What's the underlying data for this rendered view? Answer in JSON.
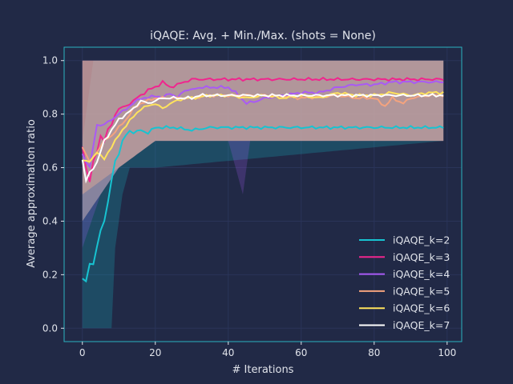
{
  "colors": {
    "background": "#212946",
    "axes_edge": "#2bb3c0",
    "grid": "#2a3459",
    "text": "#e0e3ea",
    "legend_text": "#e0e3ea"
  },
  "chart_data": {
    "type": "line",
    "title": "iQAQE: Avg. + Min./Max. (shots = None)",
    "xlabel": "# Iterations",
    "ylabel": "Average approximation ratio",
    "xlim": [
      -5,
      104
    ],
    "ylim": [
      -0.05,
      1.05
    ],
    "xticks": [
      0,
      20,
      40,
      60,
      80,
      100
    ],
    "yticks": [
      0.0,
      0.2,
      0.4,
      0.6,
      0.8,
      1.0
    ],
    "xtick_labels": [
      "0",
      "20",
      "40",
      "60",
      "80",
      "100"
    ],
    "ytick_labels": [
      "0.0",
      "0.2",
      "0.4",
      "0.6",
      "0.8",
      "1.0"
    ],
    "grid": true,
    "legend_position": "lower-right",
    "series_style": "line with shaded min/max band",
    "series": [
      {
        "name": "iQAQE_k=2",
        "color": "#17c3d1",
        "avg": [
          [
            0,
            0.18
          ],
          [
            1,
            0.18
          ],
          [
            2,
            0.24
          ],
          [
            3,
            0.24
          ],
          [
            4,
            0.3
          ],
          [
            5,
            0.37
          ],
          [
            6,
            0.4
          ],
          [
            7,
            0.47
          ],
          [
            8,
            0.55
          ],
          [
            9,
            0.63
          ],
          [
            10,
            0.65
          ],
          [
            11,
            0.7
          ],
          [
            12,
            0.72
          ],
          [
            13,
            0.74
          ],
          [
            14,
            0.73
          ],
          [
            16,
            0.74
          ],
          [
            18,
            0.73
          ],
          [
            20,
            0.75
          ],
          [
            25,
            0.75
          ],
          [
            30,
            0.74
          ],
          [
            35,
            0.75
          ],
          [
            40,
            0.75
          ],
          [
            50,
            0.75
          ],
          [
            60,
            0.75
          ],
          [
            70,
            0.75
          ],
          [
            80,
            0.75
          ],
          [
            90,
            0.75
          ],
          [
            99,
            0.75
          ]
        ],
        "min": [
          [
            0,
            0.0
          ],
          [
            8,
            0.0
          ],
          [
            9,
            0.3
          ],
          [
            11,
            0.5
          ],
          [
            13,
            0.6
          ],
          [
            16,
            0.6
          ],
          [
            20,
            0.6
          ],
          [
            99,
            0.7
          ]
        ],
        "max": [
          [
            0,
            0.7
          ],
          [
            3,
            1.0
          ],
          [
            99,
            1.0
          ]
        ]
      },
      {
        "name": "iQAQE_k=3",
        "color": "#f0258e",
        "avg": [
          [
            0,
            0.68
          ],
          [
            1,
            0.6
          ],
          [
            2,
            0.55
          ],
          [
            3,
            0.62
          ],
          [
            4,
            0.66
          ],
          [
            5,
            0.72
          ],
          [
            6,
            0.7
          ],
          [
            7,
            0.74
          ],
          [
            8,
            0.76
          ],
          [
            9,
            0.8
          ],
          [
            10,
            0.82
          ],
          [
            12,
            0.83
          ],
          [
            14,
            0.85
          ],
          [
            16,
            0.87
          ],
          [
            18,
            0.89
          ],
          [
            20,
            0.9
          ],
          [
            22,
            0.92
          ],
          [
            24,
            0.9
          ],
          [
            26,
            0.91
          ],
          [
            28,
            0.92
          ],
          [
            30,
            0.93
          ],
          [
            40,
            0.93
          ],
          [
            50,
            0.93
          ],
          [
            60,
            0.93
          ],
          [
            70,
            0.93
          ],
          [
            80,
            0.93
          ],
          [
            90,
            0.93
          ],
          [
            99,
            0.93
          ]
        ],
        "min": [
          [
            0,
            0.5
          ],
          [
            10,
            0.6
          ],
          [
            20,
            0.7
          ],
          [
            99,
            0.7
          ]
        ],
        "max": [
          [
            0,
            1.0
          ],
          [
            99,
            1.0
          ]
        ]
      },
      {
        "name": "iQAQE_k=4",
        "color": "#a95af5",
        "avg": [
          [
            0,
            0.65
          ],
          [
            2,
            0.6
          ],
          [
            4,
            0.76
          ],
          [
            6,
            0.76
          ],
          [
            8,
            0.78
          ],
          [
            10,
            0.8
          ],
          [
            12,
            0.82
          ],
          [
            14,
            0.84
          ],
          [
            16,
            0.86
          ],
          [
            18,
            0.86
          ],
          [
            20,
            0.87
          ],
          [
            22,
            0.86
          ],
          [
            24,
            0.88
          ],
          [
            26,
            0.86
          ],
          [
            28,
            0.89
          ],
          [
            30,
            0.89
          ],
          [
            32,
            0.9
          ],
          [
            35,
            0.9
          ],
          [
            40,
            0.9
          ],
          [
            42,
            0.88
          ],
          [
            45,
            0.84
          ],
          [
            48,
            0.85
          ],
          [
            50,
            0.86
          ],
          [
            55,
            0.87
          ],
          [
            60,
            0.88
          ],
          [
            65,
            0.88
          ],
          [
            70,
            0.9
          ],
          [
            75,
            0.91
          ],
          [
            80,
            0.91
          ],
          [
            85,
            0.92
          ],
          [
            90,
            0.92
          ],
          [
            95,
            0.92
          ],
          [
            99,
            0.92
          ]
        ],
        "min": [
          [
            0,
            0.3
          ],
          [
            5,
            0.5
          ],
          [
            10,
            0.6
          ],
          [
            20,
            0.7
          ],
          [
            40,
            0.7
          ],
          [
            44,
            0.5
          ],
          [
            46,
            0.7
          ],
          [
            99,
            0.7
          ]
        ],
        "max": [
          [
            0,
            1.0
          ],
          [
            99,
            1.0
          ]
        ]
      },
      {
        "name": "iQAQE_k=5",
        "color": "#f4a37e",
        "avg": [
          [
            0,
            0.68
          ],
          [
            2,
            0.62
          ],
          [
            4,
            0.66
          ],
          [
            6,
            0.7
          ],
          [
            8,
            0.72
          ],
          [
            10,
            0.75
          ],
          [
            12,
            0.78
          ],
          [
            14,
            0.82
          ],
          [
            16,
            0.84
          ],
          [
            18,
            0.85
          ],
          [
            20,
            0.86
          ],
          [
            25,
            0.86
          ],
          [
            30,
            0.86
          ],
          [
            35,
            0.87
          ],
          [
            40,
            0.87
          ],
          [
            50,
            0.87
          ],
          [
            60,
            0.86
          ],
          [
            70,
            0.87
          ],
          [
            75,
            0.86
          ],
          [
            80,
            0.86
          ],
          [
            83,
            0.83
          ],
          [
            85,
            0.86
          ],
          [
            88,
            0.84
          ],
          [
            90,
            0.86
          ],
          [
            95,
            0.87
          ],
          [
            99,
            0.87
          ]
        ],
        "min": [
          [
            0,
            0.4
          ],
          [
            10,
            0.6
          ],
          [
            20,
            0.7
          ],
          [
            99,
            0.7
          ]
        ],
        "max": [
          [
            0,
            1.0
          ],
          [
            99,
            1.0
          ]
        ]
      },
      {
        "name": "iQAQE_k=6",
        "color": "#ffe35c",
        "avg": [
          [
            0,
            0.63
          ],
          [
            2,
            0.62
          ],
          [
            4,
            0.66
          ],
          [
            6,
            0.63
          ],
          [
            8,
            0.68
          ],
          [
            10,
            0.72
          ],
          [
            12,
            0.76
          ],
          [
            14,
            0.79
          ],
          [
            16,
            0.82
          ],
          [
            18,
            0.83
          ],
          [
            20,
            0.84
          ],
          [
            22,
            0.82
          ],
          [
            24,
            0.84
          ],
          [
            26,
            0.85
          ],
          [
            28,
            0.86
          ],
          [
            30,
            0.86
          ],
          [
            35,
            0.87
          ],
          [
            40,
            0.87
          ],
          [
            45,
            0.86
          ],
          [
            50,
            0.87
          ],
          [
            55,
            0.86
          ],
          [
            60,
            0.87
          ],
          [
            65,
            0.86
          ],
          [
            70,
            0.88
          ],
          [
            75,
            0.87
          ],
          [
            80,
            0.87
          ],
          [
            85,
            0.88
          ],
          [
            90,
            0.87
          ],
          [
            95,
            0.88
          ],
          [
            99,
            0.88
          ]
        ],
        "min": [
          [
            0,
            0.5
          ],
          [
            10,
            0.6
          ],
          [
            20,
            0.7
          ],
          [
            99,
            0.7
          ]
        ],
        "max": [
          [
            0,
            1.0
          ],
          [
            99,
            1.0
          ]
        ]
      },
      {
        "name": "iQAQE_k=7",
        "color": "#ffffff",
        "avg": [
          [
            0,
            0.63
          ],
          [
            1,
            0.55
          ],
          [
            2,
            0.58
          ],
          [
            3,
            0.6
          ],
          [
            4,
            0.62
          ],
          [
            5,
            0.66
          ],
          [
            6,
            0.7
          ],
          [
            8,
            0.74
          ],
          [
            10,
            0.78
          ],
          [
            12,
            0.8
          ],
          [
            14,
            0.82
          ],
          [
            16,
            0.85
          ],
          [
            18,
            0.84
          ],
          [
            20,
            0.85
          ],
          [
            22,
            0.86
          ],
          [
            25,
            0.86
          ],
          [
            28,
            0.86
          ],
          [
            30,
            0.86
          ],
          [
            32,
            0.87
          ],
          [
            35,
            0.87
          ],
          [
            40,
            0.87
          ],
          [
            50,
            0.87
          ],
          [
            60,
            0.87
          ],
          [
            70,
            0.87
          ],
          [
            80,
            0.87
          ],
          [
            90,
            0.87
          ],
          [
            99,
            0.87
          ]
        ],
        "min": [
          [
            0,
            0.4
          ],
          [
            10,
            0.6
          ],
          [
            20,
            0.7
          ],
          [
            99,
            0.7
          ]
        ],
        "max": [
          [
            0,
            1.0
          ],
          [
            99,
            1.0
          ]
        ]
      }
    ]
  }
}
